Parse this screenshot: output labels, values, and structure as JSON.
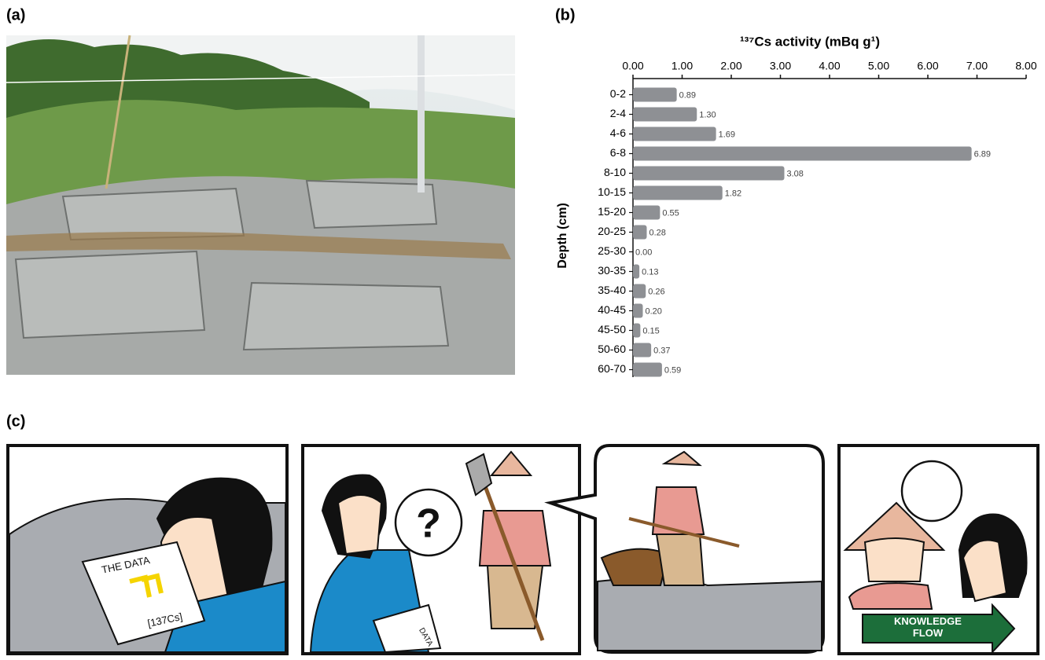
{
  "panel_labels": [
    "(a)",
    "(b)",
    "(c)"
  ],
  "chart_data": {
    "type": "hbar",
    "title": "¹³⁷Cs activity (mBq g¹)",
    "y_label": "Depth (cm)",
    "categories": [
      "0-2",
      "2-4",
      "4-6",
      "6-8",
      "8-10",
      "10-15",
      "15-20",
      "20-25",
      "25-30",
      "30-35",
      "35-40",
      "40-45",
      "45-50",
      "50-60",
      "60-70"
    ],
    "values": [
      0.89,
      1.3,
      1.69,
      6.89,
      3.08,
      1.82,
      0.55,
      0.28,
      0,
      0.13,
      0.26,
      0.2,
      0.15,
      0.37,
      0.59
    ],
    "value_labels": [
      "0.89",
      "1.30",
      "1.69",
      "6.89",
      "3.08",
      "1.82",
      "0.55",
      "0.28",
      "0.00",
      "0.13",
      "0.26",
      "0.20",
      "0.15",
      "0.37",
      "0.59"
    ],
    "color": "#8e9094",
    "xlim": [
      0,
      8
    ],
    "xticks": [
      {
        "value": 0,
        "label": "0.00"
      },
      {
        "value": 1,
        "label": "1.00"
      },
      {
        "value": 2,
        "label": "2.00"
      },
      {
        "value": 3,
        "label": "3.00"
      },
      {
        "value": 4,
        "label": "4.00"
      },
      {
        "value": 5,
        "label": "5.00"
      },
      {
        "value": 6,
        "label": "6.00"
      },
      {
        "value": 7,
        "label": "7.00"
      },
      {
        "value": 8,
        "label": "8.00"
      }
    ]
  },
  "comic": {
    "paper_title": "THE DATA",
    "paper_formula": "[137Cs]",
    "paper2_text": "DATA",
    "question": "?",
    "arrow_text": "KNOWLEDGE FLOW"
  }
}
